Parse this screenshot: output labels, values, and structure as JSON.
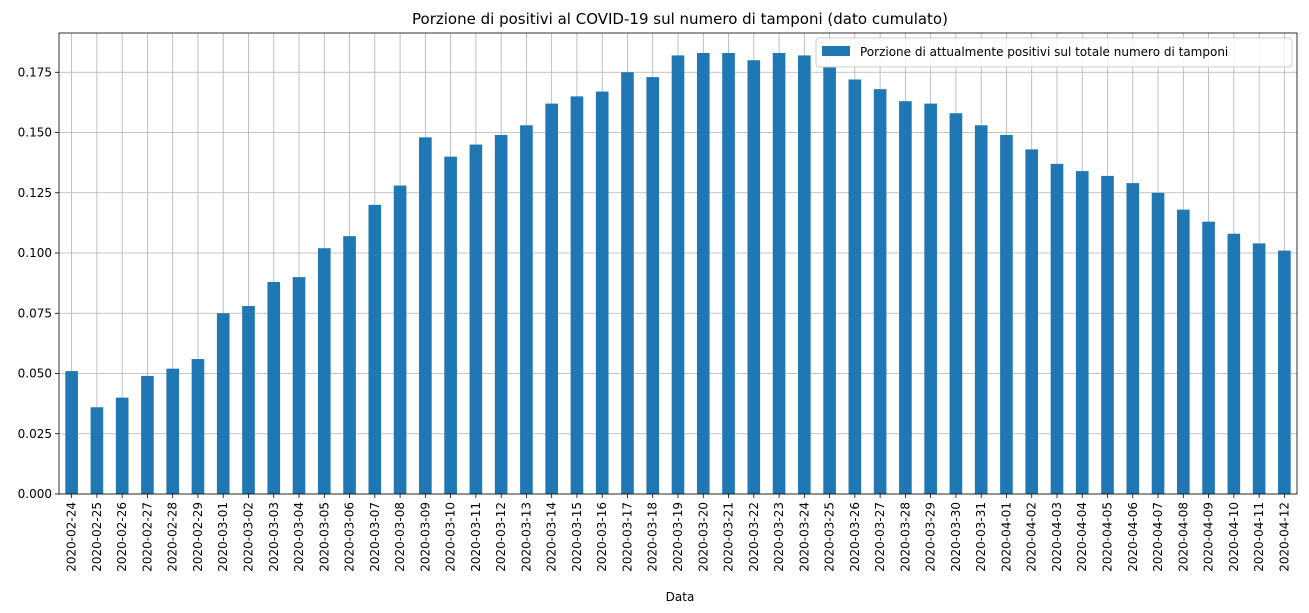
{
  "chart_data": {
    "type": "bar",
    "title": "Porzione di positivi al COVID-19 sul numero di tamponi (dato cumulato)",
    "xlabel": "Data",
    "ylabel": "",
    "ylim": [
      0,
      0.1913
    ],
    "yticks": [
      "0.000",
      "0.025",
      "0.050",
      "0.075",
      "0.100",
      "0.125",
      "0.150",
      "0.175"
    ],
    "grid": true,
    "legend_position": "top-right",
    "bar_color": "#1f77b4",
    "categories": [
      "2020-02-24",
      "2020-02-25",
      "2020-02-26",
      "2020-02-27",
      "2020-02-28",
      "2020-02-29",
      "2020-03-01",
      "2020-03-02",
      "2020-03-03",
      "2020-03-04",
      "2020-03-05",
      "2020-03-06",
      "2020-03-07",
      "2020-03-08",
      "2020-03-09",
      "2020-03-10",
      "2020-03-11",
      "2020-03-12",
      "2020-03-13",
      "2020-03-14",
      "2020-03-15",
      "2020-03-16",
      "2020-03-17",
      "2020-03-18",
      "2020-03-19",
      "2020-03-20",
      "2020-03-21",
      "2020-03-22",
      "2020-03-23",
      "2020-03-24",
      "2020-03-25",
      "2020-03-26",
      "2020-03-27",
      "2020-03-28",
      "2020-03-29",
      "2020-03-30",
      "2020-03-31",
      "2020-04-01",
      "2020-04-02",
      "2020-04-03",
      "2020-04-04",
      "2020-04-05",
      "2020-04-06",
      "2020-04-07",
      "2020-04-08",
      "2020-04-09",
      "2020-04-10",
      "2020-04-11",
      "2020-04-12"
    ],
    "series": [
      {
        "name": "Porzione di attualmente positivi sul totale numero di tamponi",
        "values": [
          0.051,
          0.036,
          0.04,
          0.049,
          0.052,
          0.056,
          0.075,
          0.078,
          0.088,
          0.09,
          0.102,
          0.107,
          0.12,
          0.128,
          0.148,
          0.14,
          0.145,
          0.149,
          0.153,
          0.162,
          0.165,
          0.167,
          0.175,
          0.173,
          0.182,
          0.183,
          0.183,
          0.18,
          0.183,
          0.182,
          0.177,
          0.172,
          0.168,
          0.163,
          0.162,
          0.158,
          0.153,
          0.149,
          0.143,
          0.137,
          0.134,
          0.132,
          0.129,
          0.125,
          0.118,
          0.113,
          0.108,
          0.104,
          0.101
        ]
      }
    ]
  }
}
